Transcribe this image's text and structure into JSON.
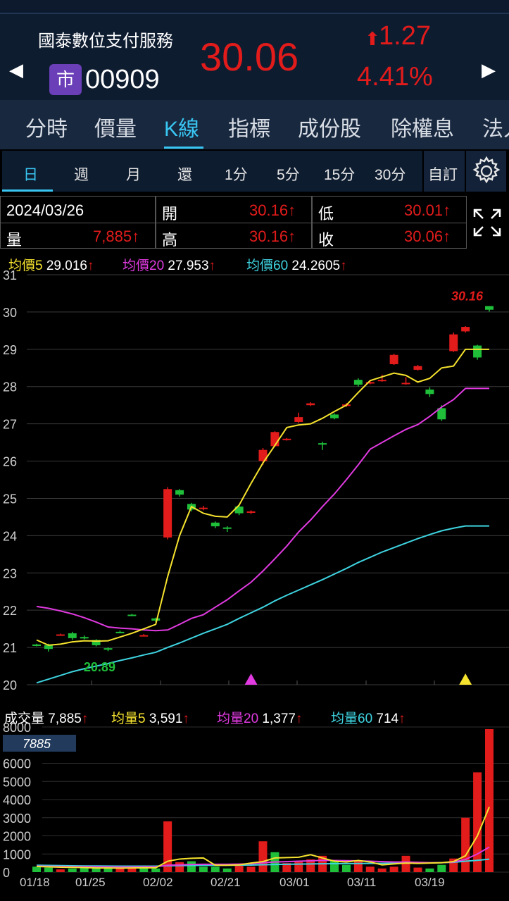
{
  "header": {
    "name": "國泰數位支付服務",
    "badge": "市",
    "code": "00909",
    "price": "30.06",
    "change": "1.27",
    "change_pct": "4.41%",
    "prev_icon": "left-triangle-icon",
    "next_icon": "right-triangle-icon"
  },
  "tabs": [
    {
      "label": "分時"
    },
    {
      "label": "價量"
    },
    {
      "label": "K線"
    },
    {
      "label": "指標"
    },
    {
      "label": "成份股"
    },
    {
      "label": "除權息"
    },
    {
      "label": "法人"
    }
  ],
  "active_tab": "K線",
  "periods": [
    {
      "label": "日"
    },
    {
      "label": "週"
    },
    {
      "label": "月"
    },
    {
      "label": "還"
    },
    {
      "label": "1分"
    },
    {
      "label": "5分"
    },
    {
      "label": "15分"
    },
    {
      "label": "30分"
    }
  ],
  "custom_label": "自訂",
  "info": {
    "date": "2024/03/26",
    "vol_label": "量",
    "vol_value": "7,885",
    "open_label": "開",
    "open_value": "30.16",
    "high_label": "高",
    "high_value": "30.16",
    "low_label": "低",
    "low_value": "30.01",
    "close_label": "收",
    "close_value": "30.06"
  },
  "ma_price": [
    {
      "label": "均價5",
      "value": "29.016",
      "color": "#f5e22e"
    },
    {
      "label": "均價20",
      "value": "27.953",
      "color": "#e03ae0"
    },
    {
      "label": "均價60",
      "value": "24.2605",
      "color": "#3ed3e0"
    }
  ],
  "ma_volume": {
    "vol_label": "成交量",
    "vol_value": "7,885",
    "items": [
      {
        "label": "均量5",
        "value": "3,591",
        "color": "#f5e22e"
      },
      {
        "label": "均量20",
        "value": "1,377",
        "color": "#e03ae0"
      },
      {
        "label": "均量60",
        "value": "714",
        "color": "#3ed3e0"
      }
    ]
  },
  "colors": {
    "up": "#e21b1b",
    "down": "#1fbf3a",
    "accent": "#39c6f2"
  },
  "chart_data": [
    {
      "type": "candlestick",
      "ylim": [
        20,
        31
      ],
      "y_ticks": [
        "31",
        "30",
        "29",
        "28",
        "27",
        "26",
        "25",
        "24",
        "23",
        "22",
        "21",
        "20"
      ],
      "annotations": {
        "max": "30.16",
        "min": "20.89"
      },
      "candles": [
        {
          "o": 21.08,
          "h": 21.1,
          "l": 21.03,
          "c": 21.04
        },
        {
          "o": 21.06,
          "h": 21.1,
          "l": 20.89,
          "c": 20.96
        },
        {
          "o": 21.34,
          "h": 21.37,
          "l": 21.32,
          "c": 21.35
        },
        {
          "o": 21.38,
          "h": 21.42,
          "l": 21.2,
          "c": 21.25
        },
        {
          "o": 21.28,
          "h": 21.32,
          "l": 21.22,
          "c": 21.27
        },
        {
          "o": 21.2,
          "h": 21.22,
          "l": 21.03,
          "c": 21.06
        },
        {
          "o": 20.98,
          "h": 21.0,
          "l": 20.9,
          "c": 20.94
        },
        {
          "o": 21.42,
          "h": 21.45,
          "l": 21.38,
          "c": 21.4
        },
        {
          "o": 21.88,
          "h": 21.9,
          "l": 21.84,
          "c": 21.86
        },
        {
          "o": 21.32,
          "h": 21.36,
          "l": 21.3,
          "c": 21.33
        },
        {
          "o": 21.78,
          "h": 21.8,
          "l": 21.68,
          "c": 21.72
        },
        {
          "o": 23.95,
          "h": 25.3,
          "l": 23.9,
          "c": 25.25
        },
        {
          "o": 25.22,
          "h": 25.25,
          "l": 25.05,
          "c": 25.1
        },
        {
          "o": 24.85,
          "h": 24.88,
          "l": 24.65,
          "c": 24.7
        },
        {
          "o": 24.72,
          "h": 24.8,
          "l": 24.68,
          "c": 24.75
        },
        {
          "o": 24.35,
          "h": 24.38,
          "l": 24.2,
          "c": 24.25
        },
        {
          "o": 24.22,
          "h": 24.25,
          "l": 24.1,
          "c": 24.2
        },
        {
          "o": 24.78,
          "h": 24.82,
          "l": 24.55,
          "c": 24.6
        },
        {
          "o": 24.62,
          "h": 24.68,
          "l": 24.58,
          "c": 24.65
        },
        {
          "o": 26.0,
          "h": 26.35,
          "l": 25.9,
          "c": 26.3
        },
        {
          "o": 26.4,
          "h": 26.8,
          "l": 26.38,
          "c": 26.78
        },
        {
          "o": 26.58,
          "h": 26.62,
          "l": 26.55,
          "c": 26.6
        },
        {
          "o": 27.05,
          "h": 27.3,
          "l": 27.02,
          "c": 27.18
        },
        {
          "o": 27.5,
          "h": 27.58,
          "l": 27.48,
          "c": 27.55
        },
        {
          "o": 26.48,
          "h": 26.52,
          "l": 26.3,
          "c": 26.45
        },
        {
          "o": 27.25,
          "h": 27.28,
          "l": 27.12,
          "c": 27.15
        },
        {
          "o": 27.48,
          "h": 27.56,
          "l": 27.45,
          "c": 27.52
        },
        {
          "o": 28.18,
          "h": 28.22,
          "l": 28.0,
          "c": 28.05
        },
        {
          "o": 28.08,
          "h": 28.16,
          "l": 28.06,
          "c": 28.12
        },
        {
          "o": 28.15,
          "h": 28.32,
          "l": 28.13,
          "c": 28.18
        },
        {
          "o": 28.6,
          "h": 28.88,
          "l": 28.58,
          "c": 28.85
        },
        {
          "o": 28.08,
          "h": 28.25,
          "l": 28.05,
          "c": 28.1
        },
        {
          "o": 28.45,
          "h": 28.58,
          "l": 28.43,
          "c": 28.55
        },
        {
          "o": 27.92,
          "h": 27.98,
          "l": 27.72,
          "c": 27.8
        },
        {
          "o": 27.42,
          "h": 27.5,
          "l": 27.08,
          "c": 27.12
        },
        {
          "o": 28.95,
          "h": 29.45,
          "l": 28.93,
          "c": 29.4
        },
        {
          "o": 29.48,
          "h": 29.62,
          "l": 29.45,
          "c": 29.6
        },
        {
          "o": 29.1,
          "h": 29.12,
          "l": 28.72,
          "c": 28.78
        },
        {
          "o": 30.16,
          "h": 30.16,
          "l": 30.01,
          "c": 30.06
        }
      ],
      "ma5": [
        21.2,
        21.06,
        21.09,
        21.15,
        21.18,
        21.17,
        21.18,
        21.28,
        21.38,
        21.5,
        21.62,
        22.9,
        24.0,
        24.78,
        24.6,
        24.52,
        24.5,
        24.82,
        25.4,
        25.95,
        26.42,
        26.9,
        26.97,
        27.0,
        27.15,
        27.33,
        27.5,
        27.84,
        28.16,
        28.26,
        28.36,
        28.3,
        28.12,
        28.22,
        28.5,
        28.55,
        29.0,
        29.0,
        29.0
      ],
      "ma20": [
        22.1,
        22.05,
        21.98,
        21.9,
        21.8,
        21.68,
        21.55,
        21.52,
        21.5,
        21.47,
        21.45,
        21.47,
        21.62,
        21.78,
        21.88,
        22.08,
        22.28,
        22.52,
        22.75,
        23.05,
        23.38,
        23.72,
        24.1,
        24.42,
        24.78,
        25.12,
        25.5,
        25.9,
        26.32,
        26.5,
        26.68,
        26.85,
        26.98,
        27.2,
        27.45,
        27.65,
        27.95,
        27.95,
        27.95
      ],
      "ma60": [
        20.05,
        20.15,
        20.25,
        20.35,
        20.43,
        20.5,
        20.57,
        20.65,
        20.72,
        20.8,
        20.87,
        21.0,
        21.12,
        21.25,
        21.38,
        21.5,
        21.62,
        21.78,
        21.93,
        22.08,
        22.25,
        22.4,
        22.54,
        22.68,
        22.82,
        22.97,
        23.12,
        23.28,
        23.42,
        23.56,
        23.68,
        23.8,
        23.92,
        24.03,
        24.13,
        24.2,
        24.26,
        24.26,
        24.26
      ],
      "signals": [
        {
          "index": 18,
          "color": "#e03ae0"
        },
        {
          "index": 36,
          "color": "#f5e22e"
        }
      ]
    },
    {
      "type": "bar",
      "ylim": [
        0,
        8000
      ],
      "y_ticks": [
        "8000",
        "6000",
        "5000",
        "4000",
        "3000",
        "2000",
        "1000",
        "0"
      ],
      "current_label": "7885",
      "x_labels": [
        "01/18",
        "01/25",
        "02/02",
        "02/21",
        "03/01",
        "03/11",
        "03/19"
      ],
      "values": [
        300,
        250,
        150,
        200,
        250,
        200,
        250,
        200,
        250,
        300,
        200,
        2800,
        550,
        600,
        300,
        300,
        200,
        400,
        300,
        1700,
        1100,
        500,
        600,
        700,
        900,
        600,
        400,
        600,
        300,
        200,
        300,
        900,
        250,
        200,
        400,
        750,
        3000,
        5500,
        7885
      ],
      "up": [
        0,
        0,
        1,
        0,
        0,
        0,
        0,
        1,
        1,
        0,
        0,
        1,
        1,
        0,
        0,
        0,
        0,
        1,
        1,
        1,
        0,
        1,
        1,
        1,
        1,
        0,
        0,
        1,
        1,
        1,
        1,
        1,
        1,
        0,
        0,
        1,
        1,
        1,
        1
      ],
      "ma5": [
        310,
        290,
        270,
        260,
        250,
        230,
        230,
        220,
        230,
        240,
        240,
        600,
        720,
        760,
        780,
        380,
        380,
        400,
        500,
        580,
        780,
        800,
        820,
        960,
        780,
        600,
        560,
        640,
        560,
        400,
        450,
        500,
        480,
        500,
        520,
        580,
        900,
        2000,
        3591
      ],
      "ma20": [
        330,
        320,
        310,
        300,
        300,
        290,
        290,
        280,
        280,
        290,
        300,
        380,
        400,
        420,
        430,
        430,
        430,
        440,
        460,
        520,
        560,
        580,
        600,
        620,
        650,
        640,
        630,
        620,
        600,
        580,
        560,
        560,
        540,
        520,
        520,
        560,
        700,
        1000,
        1377
      ],
      "ma60": [
        380,
        370,
        360,
        350,
        340,
        340,
        335,
        330,
        330,
        330,
        330,
        350,
        360,
        370,
        375,
        375,
        380,
        385,
        390,
        410,
        420,
        430,
        440,
        450,
        460,
        465,
        470,
        475,
        480,
        485,
        490,
        500,
        505,
        510,
        520,
        540,
        600,
        650,
        714
      ]
    }
  ]
}
